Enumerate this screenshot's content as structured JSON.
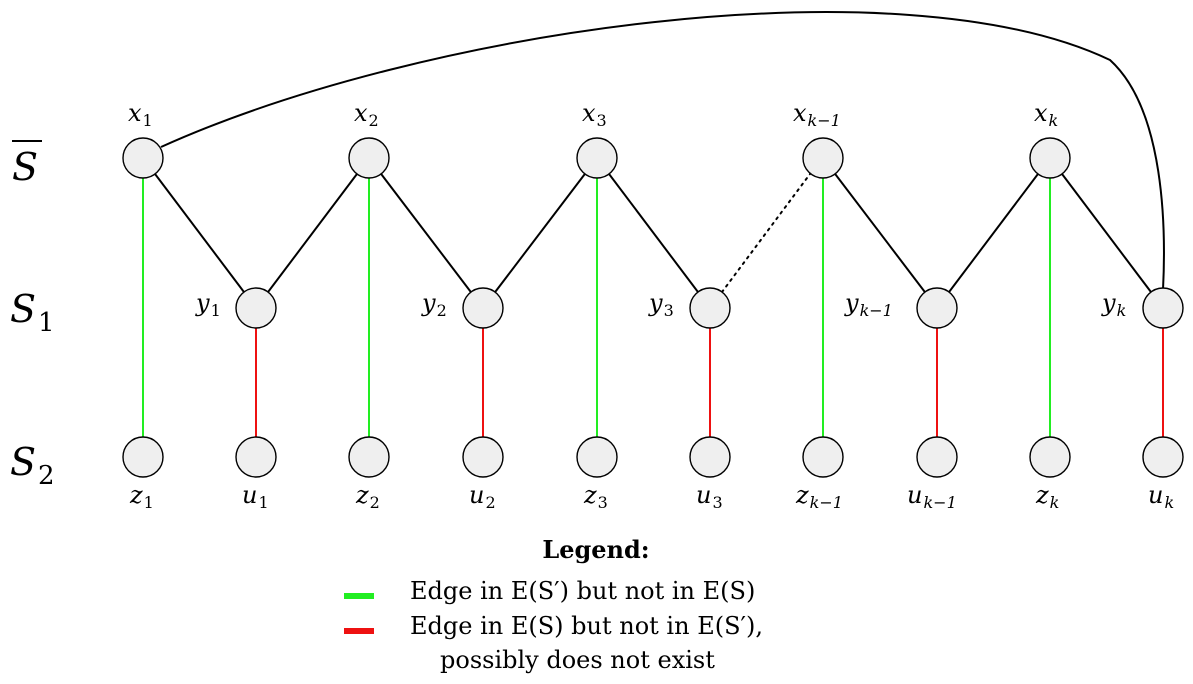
{
  "rows": {
    "top": {
      "base": "S",
      "overline": true
    },
    "mid": {
      "base": "S",
      "sub": "1"
    },
    "bot": {
      "base": "S",
      "sub": "2"
    }
  },
  "x_nodes": [
    {
      "base": "x",
      "sub": "1"
    },
    {
      "base": "x",
      "sub": "2"
    },
    {
      "base": "x",
      "sub": "3"
    },
    {
      "base": "x",
      "sub": "k−1"
    },
    {
      "base": "x",
      "sub": "k"
    }
  ],
  "y_nodes": [
    {
      "base": "y",
      "sub": "1"
    },
    {
      "base": "y",
      "sub": "2"
    },
    {
      "base": "y",
      "sub": "3"
    },
    {
      "base": "y",
      "sub": "k−1"
    },
    {
      "base": "y",
      "sub": "k"
    }
  ],
  "z_nodes": [
    {
      "base": "z",
      "sub": "1"
    },
    {
      "base": "z",
      "sub": "2"
    },
    {
      "base": "z",
      "sub": "3"
    },
    {
      "base": "z",
      "sub": "k−1"
    },
    {
      "base": "z",
      "sub": "k"
    }
  ],
  "u_nodes": [
    {
      "base": "u",
      "sub": "1"
    },
    {
      "base": "u",
      "sub": "2"
    },
    {
      "base": "u",
      "sub": "3"
    },
    {
      "base": "u",
      "sub": "k−1"
    },
    {
      "base": "u",
      "sub": "k"
    }
  ],
  "legend": {
    "title": "Legend:",
    "green_color": "#22ee22",
    "red_color": "#ee1111",
    "green_text": "Edge in E(S′) but not in E(S)",
    "red_text_line1": "Edge in E(S) but not in E(S′),",
    "red_text_line2": "possibly does not exist"
  }
}
